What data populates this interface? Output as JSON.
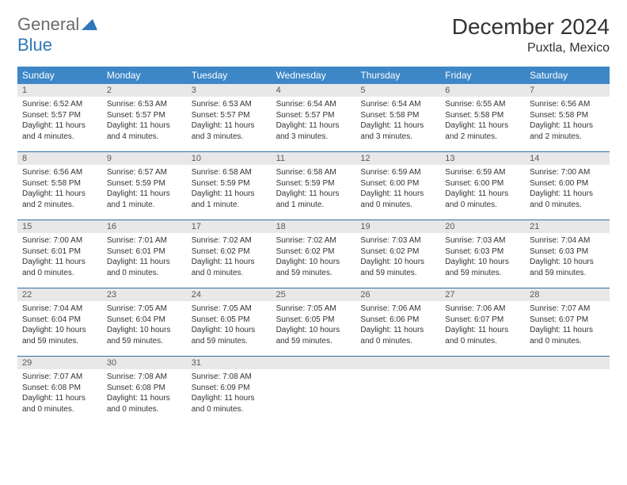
{
  "brand": {
    "part1": "General",
    "part2": "Blue"
  },
  "title": "December 2024",
  "location": "Puxtla, Mexico",
  "colors": {
    "header_bg": "#3d87c7",
    "rule": "#2e6da4",
    "daynum_bg": "#e8e8e8",
    "brand_gray": "#6b6b6b",
    "brand_blue": "#2f77b8"
  },
  "dayNames": [
    "Sunday",
    "Monday",
    "Tuesday",
    "Wednesday",
    "Thursday",
    "Friday",
    "Saturday"
  ],
  "weeks": [
    [
      {
        "n": "1",
        "sr": "6:52 AM",
        "ss": "5:57 PM",
        "dl": "11 hours and 4 minutes."
      },
      {
        "n": "2",
        "sr": "6:53 AM",
        "ss": "5:57 PM",
        "dl": "11 hours and 4 minutes."
      },
      {
        "n": "3",
        "sr": "6:53 AM",
        "ss": "5:57 PM",
        "dl": "11 hours and 3 minutes."
      },
      {
        "n": "4",
        "sr": "6:54 AM",
        "ss": "5:57 PM",
        "dl": "11 hours and 3 minutes."
      },
      {
        "n": "5",
        "sr": "6:54 AM",
        "ss": "5:58 PM",
        "dl": "11 hours and 3 minutes."
      },
      {
        "n": "6",
        "sr": "6:55 AM",
        "ss": "5:58 PM",
        "dl": "11 hours and 2 minutes."
      },
      {
        "n": "7",
        "sr": "6:56 AM",
        "ss": "5:58 PM",
        "dl": "11 hours and 2 minutes."
      }
    ],
    [
      {
        "n": "8",
        "sr": "6:56 AM",
        "ss": "5:58 PM",
        "dl": "11 hours and 2 minutes."
      },
      {
        "n": "9",
        "sr": "6:57 AM",
        "ss": "5:59 PM",
        "dl": "11 hours and 1 minute."
      },
      {
        "n": "10",
        "sr": "6:58 AM",
        "ss": "5:59 PM",
        "dl": "11 hours and 1 minute."
      },
      {
        "n": "11",
        "sr": "6:58 AM",
        "ss": "5:59 PM",
        "dl": "11 hours and 1 minute."
      },
      {
        "n": "12",
        "sr": "6:59 AM",
        "ss": "6:00 PM",
        "dl": "11 hours and 0 minutes."
      },
      {
        "n": "13",
        "sr": "6:59 AM",
        "ss": "6:00 PM",
        "dl": "11 hours and 0 minutes."
      },
      {
        "n": "14",
        "sr": "7:00 AM",
        "ss": "6:00 PM",
        "dl": "11 hours and 0 minutes."
      }
    ],
    [
      {
        "n": "15",
        "sr": "7:00 AM",
        "ss": "6:01 PM",
        "dl": "11 hours and 0 minutes."
      },
      {
        "n": "16",
        "sr": "7:01 AM",
        "ss": "6:01 PM",
        "dl": "11 hours and 0 minutes."
      },
      {
        "n": "17",
        "sr": "7:02 AM",
        "ss": "6:02 PM",
        "dl": "11 hours and 0 minutes."
      },
      {
        "n": "18",
        "sr": "7:02 AM",
        "ss": "6:02 PM",
        "dl": "10 hours and 59 minutes."
      },
      {
        "n": "19",
        "sr": "7:03 AM",
        "ss": "6:02 PM",
        "dl": "10 hours and 59 minutes."
      },
      {
        "n": "20",
        "sr": "7:03 AM",
        "ss": "6:03 PM",
        "dl": "10 hours and 59 minutes."
      },
      {
        "n": "21",
        "sr": "7:04 AM",
        "ss": "6:03 PM",
        "dl": "10 hours and 59 minutes."
      }
    ],
    [
      {
        "n": "22",
        "sr": "7:04 AM",
        "ss": "6:04 PM",
        "dl": "10 hours and 59 minutes."
      },
      {
        "n": "23",
        "sr": "7:05 AM",
        "ss": "6:04 PM",
        "dl": "10 hours and 59 minutes."
      },
      {
        "n": "24",
        "sr": "7:05 AM",
        "ss": "6:05 PM",
        "dl": "10 hours and 59 minutes."
      },
      {
        "n": "25",
        "sr": "7:05 AM",
        "ss": "6:05 PM",
        "dl": "10 hours and 59 minutes."
      },
      {
        "n": "26",
        "sr": "7:06 AM",
        "ss": "6:06 PM",
        "dl": "11 hours and 0 minutes."
      },
      {
        "n": "27",
        "sr": "7:06 AM",
        "ss": "6:07 PM",
        "dl": "11 hours and 0 minutes."
      },
      {
        "n": "28",
        "sr": "7:07 AM",
        "ss": "6:07 PM",
        "dl": "11 hours and 0 minutes."
      }
    ],
    [
      {
        "n": "29",
        "sr": "7:07 AM",
        "ss": "6:08 PM",
        "dl": "11 hours and 0 minutes."
      },
      {
        "n": "30",
        "sr": "7:08 AM",
        "ss": "6:08 PM",
        "dl": "11 hours and 0 minutes."
      },
      {
        "n": "31",
        "sr": "7:08 AM",
        "ss": "6:09 PM",
        "dl": "11 hours and 0 minutes."
      },
      null,
      null,
      null,
      null
    ]
  ],
  "labels": {
    "sunrise": "Sunrise:",
    "sunset": "Sunset:",
    "daylight": "Daylight:"
  }
}
